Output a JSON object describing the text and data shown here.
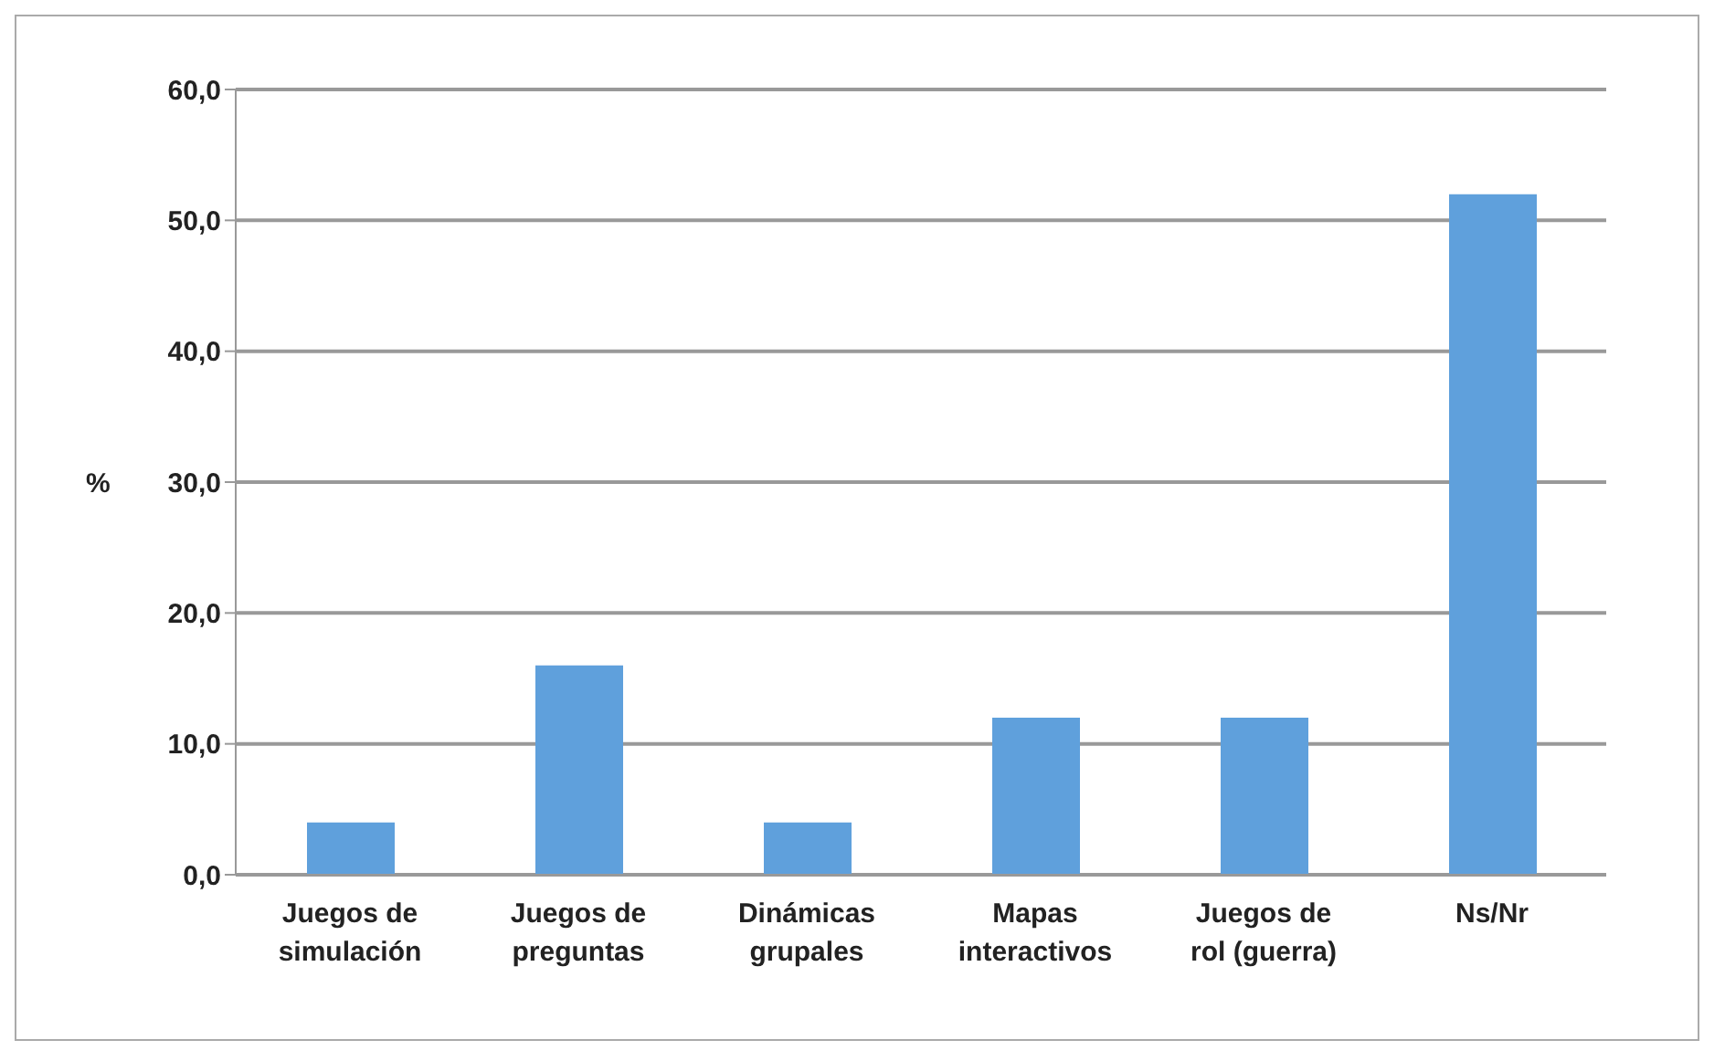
{
  "chart_data": {
    "type": "bar",
    "ylabel": "%",
    "categories": [
      "Juegos de simulación",
      "Juegos de preguntas",
      "Dinámicas grupales",
      "Mapas interactivos",
      "Juegos de rol (guerra)",
      "Ns/Nr"
    ],
    "values": [
      4,
      16,
      4,
      12,
      12,
      52
    ],
    "color": "#5fa0dc",
    "ylim": [
      0,
      60
    ],
    "yticks": [
      {
        "value": 0,
        "label": "0,0"
      },
      {
        "value": 10,
        "label": "10,0"
      },
      {
        "value": 20,
        "label": "20,0"
      },
      {
        "value": 30,
        "label": "30,0"
      },
      {
        "value": 40,
        "label": "40,0"
      },
      {
        "value": 50,
        "label": "50,0"
      },
      {
        "value": 60,
        "label": "60,0"
      }
    ],
    "grid": "y",
    "legend": false
  }
}
